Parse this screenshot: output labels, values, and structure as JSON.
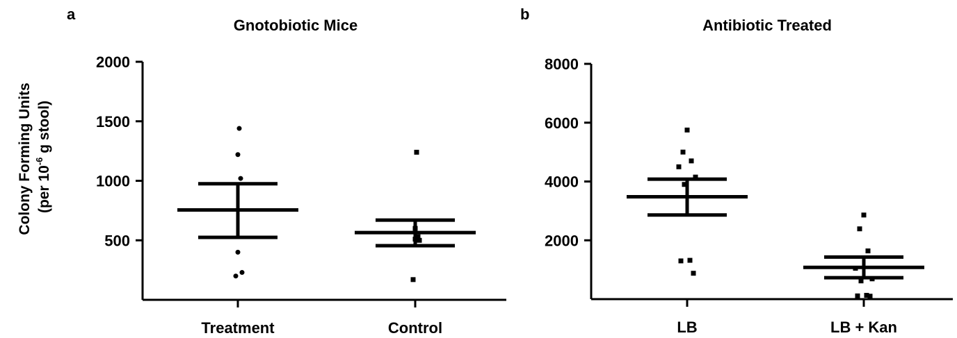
{
  "figure": {
    "ylabel_line1": "Colony Forming Units",
    "ylabel_line2_pre": "(per 10",
    "ylabel_line2_sup": "-6",
    "ylabel_line2_post": " g stool)"
  },
  "chart_data": [
    {
      "type": "scatter",
      "panel": "a",
      "title": "Gnotobiotic Mice",
      "xlabel": "",
      "ylabel": "Colony Forming Units (per 10-6 g stool)",
      "ylim": [
        0,
        2000
      ],
      "yticks": [
        500,
        1000,
        1500,
        2000
      ],
      "ytick_labels": [
        "500",
        "1000",
        "1500",
        "2000"
      ],
      "grid": false,
      "categories": [
        "Treatment",
        "Control"
      ],
      "groups": [
        {
          "category": "Treatment",
          "points": [
            1440,
            1220,
            1020,
            400,
            230,
            200
          ],
          "mean": 755,
          "sem_upper": 975,
          "sem_lower": 525
        },
        {
          "category": "Control",
          "points": [
            1240,
            600,
            530,
            510,
            500,
            170
          ],
          "mean": 565,
          "sem_upper": 670,
          "sem_lower": 455
        }
      ]
    },
    {
      "type": "scatter",
      "panel": "b",
      "title": "Antibiotic Treated",
      "xlabel": "",
      "ylabel": "",
      "ylim": [
        0,
        8000
      ],
      "yticks": [
        2000,
        4000,
        6000,
        8000
      ],
      "ytick_labels": [
        "2000",
        "4000",
        "6000",
        "8000"
      ],
      "grid": false,
      "categories": [
        "LB",
        "LB + Kan"
      ],
      "groups": [
        {
          "category": "LB",
          "points": [
            5750,
            5000,
            4700,
            4500,
            4150,
            3900,
            1320,
            1300,
            880
          ],
          "mean": 3480,
          "sem_upper": 4080,
          "sem_lower": 2860
        },
        {
          "category": "LB + Kan",
          "points": [
            2860,
            2390,
            1640,
            1050,
            690,
            620,
            130,
            110,
            100
          ],
          "mean": 1080,
          "sem_upper": 1430,
          "sem_lower": 730
        }
      ]
    }
  ]
}
